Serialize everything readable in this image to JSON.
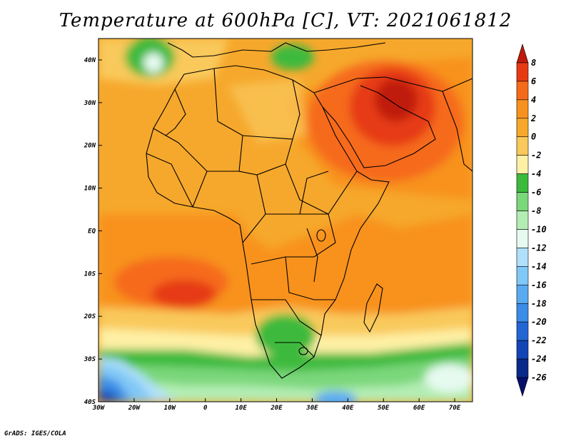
{
  "title": "Temperature at 600hPa [C], VT: 2021061812",
  "footer": "GrADS: IGES/COLA",
  "map": {
    "lon_range": [
      -30,
      75
    ],
    "lat_range": [
      -40,
      45
    ],
    "lat_ticks": [
      "40N",
      "30N",
      "20N",
      "10N",
      "EQ",
      "10S",
      "20S",
      "30S",
      "40S"
    ],
    "lon_ticks": [
      "30W",
      "20W",
      "10W",
      "0",
      "10E",
      "20E",
      "30E",
      "40E",
      "50E",
      "60E",
      "70E"
    ]
  },
  "colorbar": {
    "levels": [
      "8",
      "6",
      "4",
      "2",
      "0",
      "-2",
      "-4",
      "-6",
      "-8",
      "-10",
      "-12",
      "-14",
      "-16",
      "-18",
      "-20",
      "-22",
      "-24",
      "-26"
    ],
    "colors": [
      "#c01a0a",
      "#e63b12",
      "#f66b1a",
      "#f8921e",
      "#f6a82c",
      "#f9c95b",
      "#fef0a4",
      "#3cba3c",
      "#7ad77a",
      "#b4edb4",
      "#e6faf0",
      "#b0e0fa",
      "#80c8f6",
      "#5aaaf0",
      "#3a8ce6",
      "#2266d6",
      "#1245b6",
      "#0a2a8a",
      "#05106a"
    ]
  }
}
